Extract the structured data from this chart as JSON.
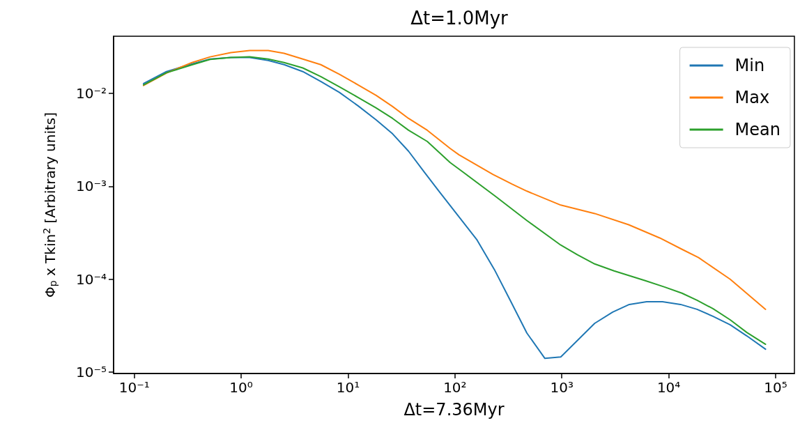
{
  "chart_data": {
    "type": "line",
    "title": "Δt=1.0Myr",
    "xlabel": "Δt=7.36Myr",
    "ylabel": "Φ$_{p}$ x Tkin$^{2}$ [Arbitrary units]",
    "log": "xy",
    "grid": false,
    "legend": "top right",
    "xlim": [
      0.064,
      150000
    ],
    "ylim": [
      9.7e-06,
      0.041
    ],
    "xticks": [
      {
        "value": 0.1,
        "label": "10⁻¹"
      },
      {
        "value": 1,
        "label": "10⁰"
      },
      {
        "value": 10,
        "label": "10¹"
      },
      {
        "value": 100,
        "label": "10²"
      },
      {
        "value": 1000,
        "label": "10³"
      },
      {
        "value": 10000,
        "label": "10⁴"
      },
      {
        "value": 100000,
        "label": "10⁵"
      }
    ],
    "yticks": [
      {
        "value": 1e-05,
        "label": "10⁻⁵"
      },
      {
        "value": 0.0001,
        "label": "10⁻⁴"
      },
      {
        "value": 0.001,
        "label": "10⁻³"
      },
      {
        "value": 0.01,
        "label": "10⁻²"
      }
    ],
    "series": [
      {
        "name": "Min",
        "color": "#1f77b4",
        "x": [
          0.122,
          0.2,
          0.347,
          0.512,
          0.8,
          1.2,
          1.79,
          2.52,
          3.77,
          5.55,
          8.3,
          12.4,
          18.3,
          26.1,
          36.8,
          51.9,
          70,
          161,
          234,
          334,
          471,
          694,
          977,
          2030,
          2990,
          4280,
          6210,
          8750,
          12900,
          18400,
          25900,
          37600,
          53800,
          80500
        ],
        "values": [
          0.0127,
          0.0171,
          0.0207,
          0.0233,
          0.0242,
          0.0242,
          0.0225,
          0.0203,
          0.0171,
          0.0134,
          0.0102,
          0.00732,
          0.00518,
          0.00366,
          0.00238,
          0.00141,
          0.0009,
          0.000264,
          0.000127,
          5.74e-05,
          2.64e-05,
          1.41e-05,
          1.46e-05,
          3.36e-05,
          4.44e-05,
          5.36e-05,
          5.74e-05,
          5.74e-05,
          5.36e-05,
          4.75e-05,
          4e-05,
          3.24e-05,
          2.46e-05,
          1.77e-05
        ]
      },
      {
        "name": "Max",
        "color": "#ff7f0e",
        "x": [
          0.122,
          0.2,
          0.347,
          0.512,
          0.8,
          1.2,
          1.79,
          2.52,
          3.77,
          5.55,
          8.3,
          12.4,
          18.3,
          26.1,
          36.8,
          55.1,
          90.1,
          109,
          227,
          344,
          471,
          977,
          1337,
          2030,
          4220,
          8240,
          13300,
          19000,
          37600,
          80500
        ],
        "values": [
          0.0121,
          0.0165,
          0.0214,
          0.0246,
          0.0273,
          0.0288,
          0.0288,
          0.0269,
          0.0233,
          0.0203,
          0.016,
          0.0123,
          0.00949,
          0.0072,
          0.00536,
          0.004,
          0.00255,
          0.00218,
          0.00134,
          0.00105,
          0.000886,
          0.000627,
          0.000574,
          0.000509,
          0.000386,
          0.000278,
          0.00021,
          0.000171,
          0.0001,
          4.75e-05
        ]
      },
      {
        "name": "Mean",
        "color": "#2ca02c",
        "x": [
          0.122,
          0.2,
          0.347,
          0.512,
          0.8,
          1.2,
          1.79,
          2.52,
          3.77,
          5.55,
          8.3,
          12.4,
          18.3,
          26.1,
          36.8,
          55.1,
          90.1,
          121,
          237,
          471,
          977,
          1400,
          2030,
          3080,
          6030,
          9140,
          13300,
          18400,
          25900,
          37600,
          53800,
          80500
        ],
        "values": [
          0.0123,
          0.0166,
          0.0202,
          0.0231,
          0.0242,
          0.0246,
          0.0233,
          0.0214,
          0.0187,
          0.0151,
          0.0117,
          0.00902,
          0.00695,
          0.00536,
          0.004,
          0.00303,
          0.0018,
          0.0014,
          0.000785,
          0.000428,
          0.000233,
          0.000183,
          0.000146,
          0.000123,
          9.66e-05,
          8.26e-05,
          7.08e-05,
          5.95e-05,
          4.83e-05,
          3.66e-05,
          2.68e-05,
          2e-05
        ]
      }
    ]
  }
}
